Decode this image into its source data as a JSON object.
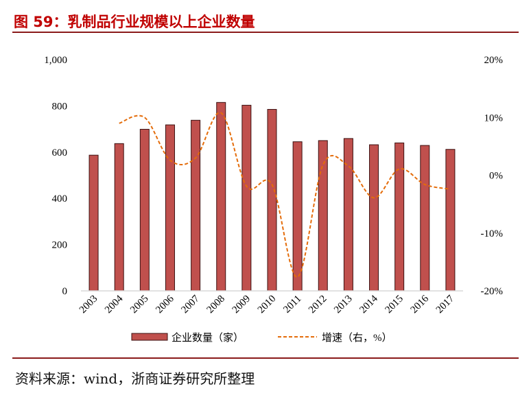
{
  "title": "图 59：乳制品行业规模以上企业数量",
  "source": "资料来源：wind，浙商证券研究所整理",
  "colors": {
    "bar": "#c0504d",
    "bar_edge": "#3a1010",
    "line": "#e46c0a",
    "title": "#c00000"
  },
  "chart_data": {
    "type": "bar+line",
    "categories": [
      "2003",
      "2004",
      "2005",
      "2006",
      "2007",
      "2008",
      "2009",
      "2010",
      "2011",
      "2012",
      "2013",
      "2014",
      "2015",
      "2016",
      "2017"
    ],
    "series": [
      {
        "name": "企业数量（家）",
        "type": "bar",
        "axis": "left",
        "values": [
          587,
          637,
          699,
          718,
          738,
          815,
          803,
          785,
          645,
          650,
          659,
          632,
          640,
          629,
          612
        ]
      },
      {
        "name": "增速（右，%）",
        "type": "line",
        "style": "dashed",
        "smooth": true,
        "axis": "right",
        "values": [
          null,
          9.0,
          10.0,
          2.6,
          3.0,
          10.8,
          -1.9,
          -1.6,
          -17.6,
          1.8,
          1.6,
          -3.9,
          1.1,
          -1.6,
          -2.4
        ]
      }
    ],
    "left_axis": {
      "ylim": [
        0,
        1000
      ],
      "ticks": [
        "0",
        "200",
        "400",
        "600",
        "800",
        "1,000"
      ]
    },
    "right_axis": {
      "ylim": [
        -20,
        20
      ],
      "ticks": [
        "-20%",
        "-10%",
        "0%",
        "10%",
        "20%"
      ]
    },
    "grid": false,
    "legend": "bottom"
  }
}
